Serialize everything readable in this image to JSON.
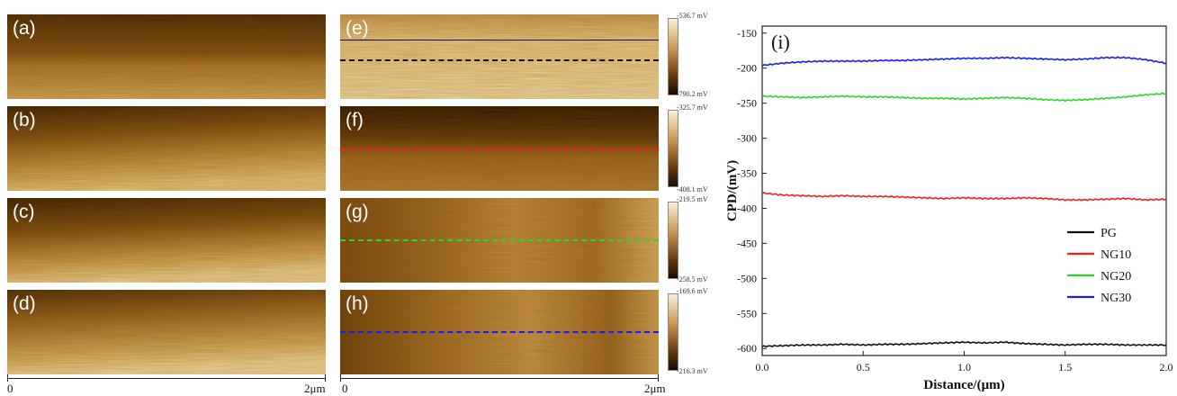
{
  "panels": {
    "a": {
      "label": "(a)"
    },
    "b": {
      "label": "(b)"
    },
    "c": {
      "label": "(c)"
    },
    "d": {
      "label": "(d)"
    },
    "e": {
      "label": "(e)",
      "cbar_top": "-536.7 mV",
      "cbar_bottom": "-790.2 mV"
    },
    "f": {
      "label": "(f)",
      "cbar_top": "-325.7 mV",
      "cbar_bottom": "-408.1 mV"
    },
    "g": {
      "label": "(g)",
      "cbar_top": "-219.5 mV",
      "cbar_bottom": "-258.5 mV"
    },
    "h": {
      "label": "(h)",
      "cbar_top": "-169.6 mV",
      "cbar_bottom": "-216.3 mV"
    }
  },
  "scale": {
    "start": "0",
    "end": "2μm",
    "start2": "0",
    "end2": "2μm"
  },
  "colors": {
    "PG": "#111111",
    "NG10": "#ff1a1a",
    "NG20": "#22dd22",
    "NG30": "#1a1aff"
  },
  "chart_data": {
    "type": "line",
    "panel_label": "(i)",
    "xlabel": "Distance/(μm)",
    "ylabel": "CPD/(mV)",
    "xlim": [
      0.0,
      2.0
    ],
    "ylim": [
      -610,
      -140
    ],
    "xticks": [
      "0.0",
      "0.5",
      "1.0",
      "1.5",
      "2.0"
    ],
    "yticks": [
      "-150",
      "-200",
      "-250",
      "-300",
      "-350",
      "-400",
      "-450",
      "-500",
      "-550",
      "-600"
    ],
    "x": [
      0.0,
      0.1,
      0.2,
      0.3,
      0.4,
      0.5,
      0.6,
      0.7,
      0.8,
      0.9,
      1.0,
      1.1,
      1.2,
      1.3,
      1.4,
      1.5,
      1.6,
      1.7,
      1.8,
      1.9,
      2.0
    ],
    "legend_position": "bottom-right",
    "series": [
      {
        "name": "PG",
        "color": "#111111",
        "values": [
          -597,
          -596,
          -595,
          -595,
          -594,
          -595,
          -594,
          -594,
          -593,
          -592,
          -591,
          -592,
          -591,
          -593,
          -594,
          -595,
          -594,
          -594,
          -595,
          -595,
          -595
        ]
      },
      {
        "name": "NG10",
        "color": "#ff1a1a",
        "values": [
          -378,
          -381,
          -382,
          -383,
          -382,
          -383,
          -383,
          -384,
          -385,
          -386,
          -385,
          -386,
          -386,
          -385,
          -386,
          -388,
          -388,
          -387,
          -386,
          -388,
          -387
        ]
      },
      {
        "name": "NG20",
        "color": "#22dd22",
        "values": [
          -240,
          -241,
          -242,
          -241,
          -240,
          -241,
          -241,
          -242,
          -243,
          -243,
          -244,
          -243,
          -242,
          -243,
          -245,
          -246,
          -245,
          -243,
          -241,
          -238,
          -236
        ]
      },
      {
        "name": "NG30",
        "color": "#1a1aff",
        "values": [
          -196,
          -193,
          -191,
          -190,
          -190,
          -190,
          -189,
          -189,
          -188,
          -187,
          -186,
          -186,
          -185,
          -186,
          -187,
          -188,
          -187,
          -185,
          -185,
          -188,
          -193
        ]
      }
    ]
  }
}
